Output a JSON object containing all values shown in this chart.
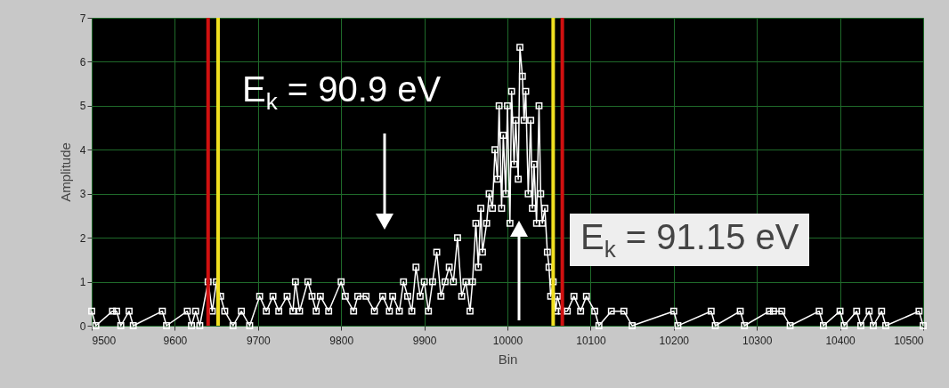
{
  "chart_data": {
    "type": "line",
    "xlabel": "Bin",
    "ylabel": "Amplitude",
    "x": [
      9500,
      9505,
      9525,
      9530,
      9535,
      9545,
      9550,
      9585,
      9590,
      9615,
      9620,
      9625,
      9630,
      9640,
      9645,
      9650,
      9655,
      9660,
      9670,
      9680,
      9690,
      9702,
      9710,
      9718,
      9725,
      9735,
      9742,
      9745,
      9750,
      9760,
      9765,
      9770,
      9775,
      9785,
      9800,
      9805,
      9815,
      9820,
      9830,
      9840,
      9850,
      9858,
      9862,
      9870,
      9875,
      9880,
      9885,
      9890,
      9895,
      9900,
      9905,
      9910,
      9915,
      9920,
      9925,
      9930,
      9935,
      9940,
      9945,
      9950,
      9955,
      9958,
      9962,
      9965,
      9968,
      9970,
      9975,
      9978,
      9982,
      9985,
      9988,
      9990,
      9993,
      9995,
      9998,
      10000,
      10003,
      10005,
      10008,
      10010,
      10013,
      10015,
      10018,
      10020,
      10022,
      10025,
      10028,
      10030,
      10032,
      10035,
      10038,
      10040,
      10042,
      10045,
      10048,
      10050,
      10052,
      10055,
      10058,
      10060,
      10065,
      10072,
      10080,
      10088,
      10095,
      10105,
      10110,
      10125,
      10140,
      10150,
      10200,
      10205,
      10245,
      10250,
      10280,
      10285,
      10315,
      10320,
      10330,
      10340,
      10375,
      10380,
      10400,
      10405,
      10420,
      10425,
      10435,
      10440,
      10450,
      10455,
      10495,
      10500
    ],
    "series": [
      {
        "color": "#ffffff",
        "values": [
          0.33,
          0,
          0.33,
          0.33,
          0,
          0.33,
          0,
          0.33,
          0,
          0.33,
          0,
          0.33,
          0,
          1,
          0.33,
          1,
          0.67,
          0.33,
          0,
          0.33,
          0,
          0.67,
          0.33,
          0.67,
          0.33,
          0.67,
          0.33,
          1,
          0.33,
          1,
          0.67,
          0.33,
          0.67,
          0.33,
          1,
          0.67,
          0.33,
          0.67,
          0.67,
          0.33,
          0.67,
          0.33,
          0.67,
          0.33,
          1,
          0.67,
          0.33,
          1.33,
          0.67,
          1,
          0.33,
          1,
          1.67,
          0.67,
          1,
          1.33,
          1,
          2,
          0.67,
          1,
          0.33,
          1,
          2.33,
          1.33,
          2.67,
          1.67,
          2.33,
          3,
          2.67,
          4,
          3.33,
          5,
          2.67,
          4.33,
          3,
          5,
          2.33,
          5.33,
          3.67,
          4.67,
          3.33,
          6.33,
          5.67,
          4.67,
          5.33,
          3,
          4.67,
          2.67,
          3.67,
          2.33,
          5,
          3,
          2.33,
          2.67,
          1.67,
          1.33,
          0.67,
          1,
          0.33,
          0.67,
          0.33,
          0.33,
          0.67,
          0.33,
          0.67,
          0.33,
          0,
          0.33,
          0.33,
          0,
          0.33,
          0,
          0.33,
          0,
          0.33,
          0,
          0.33,
          0.33,
          0.33,
          0,
          0.33,
          0,
          0.33,
          0,
          0.33,
          0,
          0.33,
          0,
          0.33,
          0,
          0.33,
          0
        ]
      }
    ],
    "xlim": [
      9500,
      10500
    ],
    "xticks": [
      9500,
      9600,
      9700,
      9800,
      9900,
      10000,
      10100,
      10200,
      10300,
      10400,
      10500
    ],
    "ylim": [
      0,
      7
    ],
    "yticks": [
      0,
      1,
      2,
      3,
      4,
      5,
      6,
      7
    ],
    "grid": true,
    "marker": "square",
    "line_style": "solid",
    "ref_lines": [
      {
        "axis": "x",
        "value": 9640,
        "color": "#d01010"
      },
      {
        "axis": "x",
        "value": 9652,
        "color": "#f0e020"
      },
      {
        "axis": "x",
        "value": 10055,
        "color": "#f0e020"
      },
      {
        "axis": "x",
        "value": 10066,
        "color": "#d01010"
      }
    ],
    "annotations": [
      "E$_{k}$ = 90.9 eV",
      "E$_{k}$ = 91.15 eV"
    ]
  }
}
